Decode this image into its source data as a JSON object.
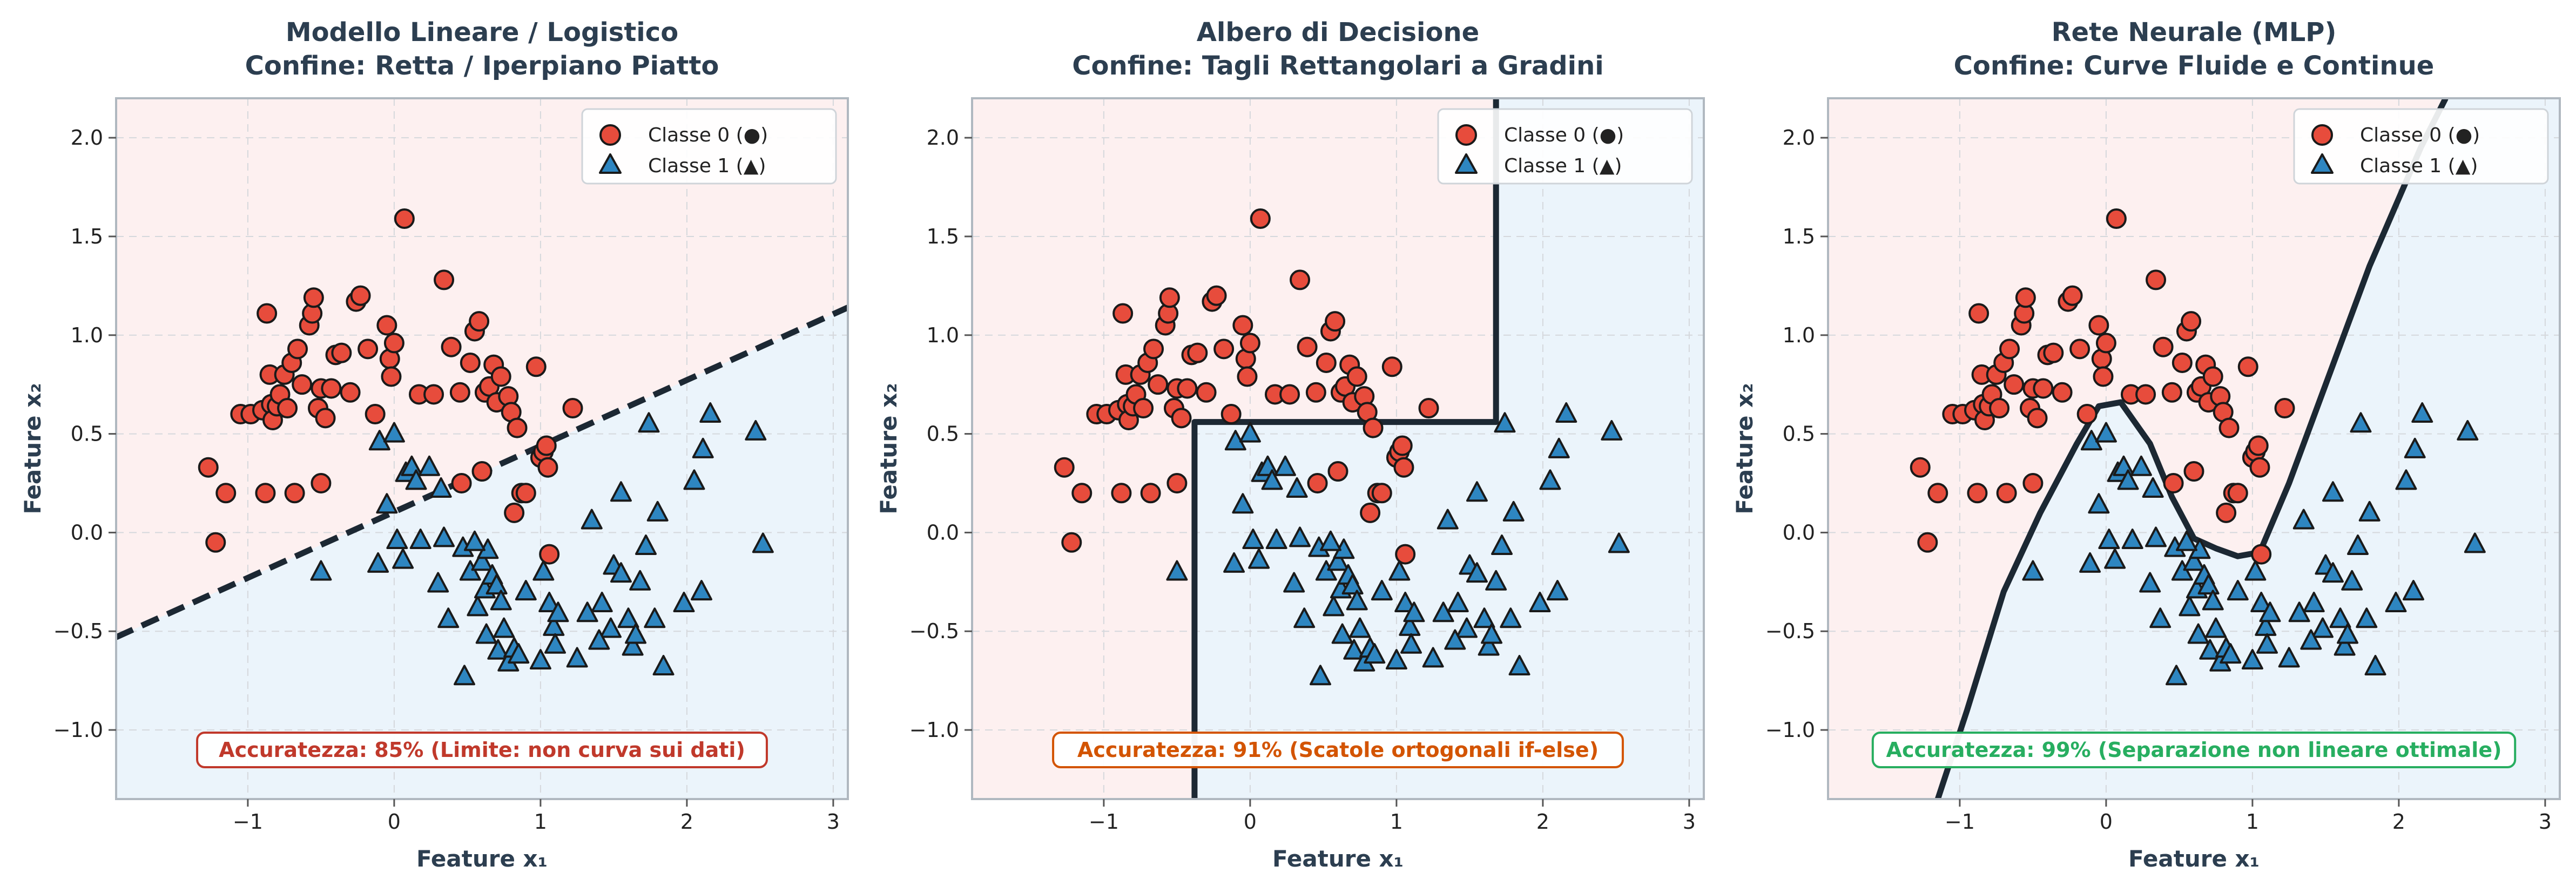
{
  "chart_data": [
    {
      "type": "scatter",
      "title_line1": "Modello Lineare / Logistico",
      "title_line2": "Confine: Retta / Iperpiano Piatto",
      "xlabel": "Feature x₁",
      "ylabel": "Feature x₂",
      "xlim": [
        -1.9,
        3.1
      ],
      "ylim": [
        -1.35,
        2.2
      ],
      "xticks": [
        -1,
        0,
        1,
        2,
        3
      ],
      "yticks": [
        -1.0,
        -0.5,
        0.0,
        0.5,
        1.0,
        1.5,
        2.0
      ],
      "grid": true,
      "legend_position": "top-right",
      "accuracy_text": "Accuratezza: 85% (Limite: non curva sui dati)",
      "accuracy_color": "#c0392b",
      "boundary": {
        "style": "dashed",
        "points": [
          [
            -1.9,
            -0.53
          ],
          [
            3.1,
            1.14
          ]
        ]
      }
    },
    {
      "type": "scatter",
      "title_line1": "Albero di Decisione",
      "title_line2": "Confine: Tagli Rettangolari a Gradini",
      "xlabel": "Feature x₁",
      "ylabel": "Feature x₂",
      "xlim": [
        -1.9,
        3.1
      ],
      "ylim": [
        -1.35,
        2.2
      ],
      "xticks": [
        -1,
        0,
        1,
        2,
        3
      ],
      "yticks": [
        -1.0,
        -0.5,
        0.0,
        0.5,
        1.0,
        1.5,
        2.0
      ],
      "grid": true,
      "legend_position": "top-right",
      "accuracy_text": "Accuratezza: 91% (Scatole ortogonali if-else)",
      "accuracy_color": "#d35400",
      "boundary": {
        "style": "solid",
        "points": [
          [
            -0.38,
            -1.35
          ],
          [
            -0.38,
            0.56
          ],
          [
            1.68,
            0.56
          ],
          [
            1.68,
            2.2
          ]
        ]
      },
      "class1_region": [
        [
          -0.38,
          -1.35
        ],
        [
          -0.38,
          0.56
        ],
        [
          1.68,
          0.56
        ],
        [
          1.68,
          2.2
        ],
        [
          3.1,
          2.2
        ],
        [
          3.1,
          -1.35
        ]
      ]
    },
    {
      "type": "scatter",
      "title_line1": "Rete Neurale (MLP)",
      "title_line2": "Confine: Curve Fluide e Continue",
      "xlabel": "Feature x₁",
      "ylabel": "Feature x₂",
      "xlim": [
        -1.9,
        3.1
      ],
      "ylim": [
        -1.35,
        2.2
      ],
      "xticks": [
        -1,
        0,
        1,
        2,
        3
      ],
      "yticks": [
        -1.0,
        -0.5,
        0.0,
        0.5,
        1.0,
        1.5,
        2.0
      ],
      "grid": true,
      "legend_position": "top-right",
      "accuracy_text": "Accuratezza: 99% (Separazione non lineare ottimale)",
      "accuracy_color": "#27ae60",
      "boundary": {
        "style": "solid",
        "points": [
          [
            -1.15,
            -1.35
          ],
          [
            -0.95,
            -0.9
          ],
          [
            -0.7,
            -0.3
          ],
          [
            -0.45,
            0.1
          ],
          [
            -0.2,
            0.45
          ],
          [
            -0.05,
            0.64
          ],
          [
            0.1,
            0.66
          ],
          [
            0.3,
            0.45
          ],
          [
            0.45,
            0.18
          ],
          [
            0.6,
            -0.03
          ],
          [
            0.75,
            -0.08
          ],
          [
            0.9,
            -0.12
          ],
          [
            1.05,
            -0.1
          ],
          [
            1.25,
            0.25
          ],
          [
            1.5,
            0.75
          ],
          [
            1.8,
            1.35
          ],
          [
            2.15,
            1.95
          ],
          [
            2.32,
            2.2
          ]
        ]
      },
      "class1_region": [
        [
          -1.15,
          -1.35
        ],
        [
          -0.95,
          -0.9
        ],
        [
          -0.7,
          -0.3
        ],
        [
          -0.45,
          0.1
        ],
        [
          -0.2,
          0.45
        ],
        [
          -0.05,
          0.64
        ],
        [
          0.1,
          0.66
        ],
        [
          0.3,
          0.45
        ],
        [
          0.45,
          0.18
        ],
        [
          0.6,
          -0.03
        ],
        [
          0.75,
          -0.08
        ],
        [
          0.9,
          -0.12
        ],
        [
          1.05,
          -0.1
        ],
        [
          1.25,
          0.25
        ],
        [
          1.5,
          0.75
        ],
        [
          1.8,
          1.35
        ],
        [
          2.15,
          1.95
        ],
        [
          2.32,
          2.2
        ],
        [
          3.1,
          2.2
        ],
        [
          3.1,
          -1.35
        ]
      ]
    }
  ],
  "points": {
    "class0": [
      [
        -1.27,
        0.33
      ],
      [
        -1.22,
        -0.05
      ],
      [
        -1.15,
        0.2
      ],
      [
        -1.05,
        0.6
      ],
      [
        -0.98,
        0.6
      ],
      [
        -0.9,
        0.62
      ],
      [
        -0.88,
        0.2
      ],
      [
        -0.87,
        1.11
      ],
      [
        -0.85,
        0.8
      ],
      [
        -0.84,
        0.65
      ],
      [
        -0.83,
        0.57
      ],
      [
        -0.8,
        0.64
      ],
      [
        -0.78,
        0.7
      ],
      [
        -0.75,
        0.8
      ],
      [
        -0.73,
        0.63
      ],
      [
        -0.7,
        0.86
      ],
      [
        -0.68,
        0.2
      ],
      [
        -0.66,
        0.93
      ],
      [
        -0.63,
        0.75
      ],
      [
        -0.58,
        1.05
      ],
      [
        -0.56,
        1.11
      ],
      [
        -0.55,
        1.19
      ],
      [
        -0.52,
        0.63
      ],
      [
        -0.5,
        0.73
      ],
      [
        -0.5,
        0.25
      ],
      [
        -0.47,
        0.58
      ],
      [
        -0.43,
        0.73
      ],
      [
        -0.4,
        0.9
      ],
      [
        -0.36,
        0.91
      ],
      [
        -0.3,
        0.71
      ],
      [
        -0.26,
        1.17
      ],
      [
        -0.23,
        1.2
      ],
      [
        -0.18,
        0.93
      ],
      [
        -0.13,
        0.6
      ],
      [
        -0.05,
        1.05
      ],
      [
        -0.03,
        0.88
      ],
      [
        -0.02,
        0.79
      ],
      [
        0.0,
        0.96
      ],
      [
        0.07,
        1.59
      ],
      [
        0.17,
        0.7
      ],
      [
        0.27,
        0.7
      ],
      [
        0.34,
        1.28
      ],
      [
        0.39,
        0.94
      ],
      [
        0.45,
        0.71
      ],
      [
        0.46,
        0.25
      ],
      [
        0.52,
        0.86
      ],
      [
        0.55,
        1.02
      ],
      [
        0.58,
        1.07
      ],
      [
        0.6,
        0.31
      ],
      [
        0.62,
        0.71
      ],
      [
        0.65,
        0.74
      ],
      [
        0.68,
        0.85
      ],
      [
        0.7,
        0.66
      ],
      [
        0.73,
        0.79
      ],
      [
        0.78,
        0.69
      ],
      [
        0.8,
        0.61
      ],
      [
        0.82,
        0.1
      ],
      [
        0.84,
        0.53
      ],
      [
        0.87,
        0.2
      ],
      [
        0.9,
        0.2
      ],
      [
        0.97,
        0.84
      ],
      [
        1.0,
        0.38
      ],
      [
        1.02,
        0.41
      ],
      [
        1.04,
        0.44
      ],
      [
        1.05,
        0.33
      ],
      [
        1.06,
        -0.11
      ],
      [
        1.22,
        0.63
      ]
    ],
    "class1": [
      [
        -0.11,
        -0.16
      ],
      [
        -0.1,
        0.46
      ],
      [
        -0.05,
        0.14
      ],
      [
        0.0,
        0.5
      ],
      [
        0.02,
        -0.04
      ],
      [
        0.06,
        -0.14
      ],
      [
        0.08,
        0.3
      ],
      [
        0.12,
        0.33
      ],
      [
        0.15,
        0.26
      ],
      [
        0.18,
        -0.04
      ],
      [
        0.24,
        0.33
      ],
      [
        0.3,
        -0.26
      ],
      [
        0.32,
        0.22
      ],
      [
        0.34,
        -0.03
      ],
      [
        0.37,
        -0.44
      ],
      [
        0.47,
        -0.08
      ],
      [
        0.48,
        -0.73
      ],
      [
        0.52,
        -0.2
      ],
      [
        0.57,
        -0.38
      ],
      [
        0.6,
        -0.15
      ],
      [
        0.62,
        -0.29
      ],
      [
        0.63,
        -0.52
      ],
      [
        0.64,
        -0.09
      ],
      [
        0.67,
        -0.22
      ],
      [
        0.7,
        -0.27
      ],
      [
        0.71,
        -0.6
      ],
      [
        0.73,
        -0.35
      ],
      [
        0.75,
        -0.49
      ],
      [
        0.78,
        -0.66
      ],
      [
        0.82,
        -0.59
      ],
      [
        0.85,
        -0.62
      ],
      [
        1.02,
        -0.2
      ],
      [
        1.06,
        -0.36
      ],
      [
        1.09,
        -0.48
      ],
      [
        1.1,
        -0.57
      ],
      [
        1.12,
        -0.41
      ],
      [
        1.25,
        -0.64
      ],
      [
        1.32,
        -0.41
      ],
      [
        1.35,
        0.06
      ],
      [
        1.42,
        -0.36
      ],
      [
        1.48,
        -0.49
      ],
      [
        1.5,
        -0.17
      ],
      [
        1.55,
        -0.21
      ],
      [
        1.6,
        -0.44
      ],
      [
        1.63,
        -0.58
      ],
      [
        1.65,
        -0.52
      ],
      [
        1.68,
        -0.25
      ],
      [
        1.72,
        -0.07
      ],
      [
        1.74,
        0.55
      ],
      [
        1.78,
        -0.44
      ],
      [
        1.84,
        -0.68
      ],
      [
        1.98,
        -0.36
      ],
      [
        2.05,
        0.26
      ],
      [
        2.11,
        0.42
      ],
      [
        2.16,
        0.6
      ],
      [
        2.47,
        0.51
      ],
      [
        2.52,
        -0.06
      ],
      [
        -0.5,
        -0.2
      ],
      [
        1.55,
        0.2
      ],
      [
        1.8,
        0.1
      ],
      [
        2.1,
        -0.3
      ],
      [
        1.4,
        -0.55
      ],
      [
        1.0,
        -0.65
      ],
      [
        0.55,
        -0.05
      ],
      [
        0.9,
        -0.3
      ]
    ]
  },
  "legend": {
    "class0": "Classe 0 (●)",
    "class1": "Classe 1 (▲)"
  },
  "colors": {
    "class0_fill": "#e74c3c",
    "class1_fill": "#2e86c1",
    "class0_region": "#fdf0f0",
    "class1_region": "#ebf4fb",
    "boundary": "#1c2833",
    "title": "#2c3e50",
    "axis": "#b0b8c0",
    "grid": "#d5d8dc"
  }
}
